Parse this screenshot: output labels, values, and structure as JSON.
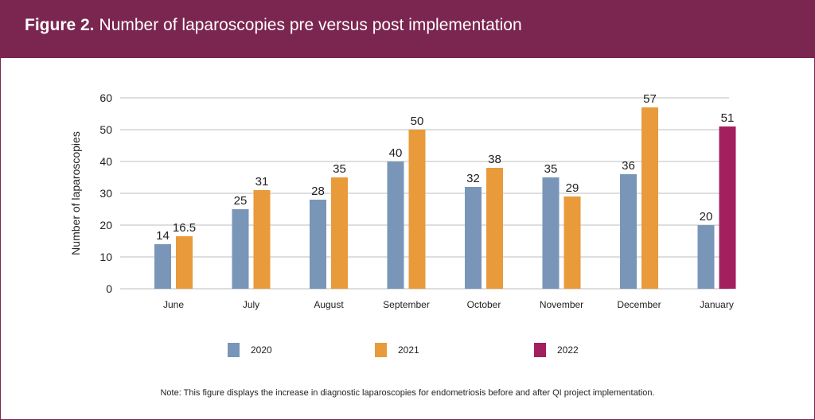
{
  "figure": {
    "label": "Figure 2.",
    "title": "Number of laparoscopies pre versus post implementation",
    "note": "Note: This figure displays the increase in diagnostic laparoscopies for endometriosis before and after QI project implementation."
  },
  "colors": {
    "header": "#7b2650",
    "s2020": "#7996b8",
    "s2021": "#e99a3b",
    "s2022": "#a3205f"
  },
  "chart_data": {
    "type": "bar",
    "ylabel": "Number of laparoscopies",
    "xlabel": "",
    "ylim": [
      0,
      60
    ],
    "yticks": [
      0,
      10,
      20,
      30,
      40,
      50,
      60
    ],
    "grid": true,
    "legend_position": "bottom",
    "categories": [
      "June",
      "July",
      "August",
      "September",
      "October",
      "November",
      "December",
      "January"
    ],
    "series": [
      {
        "name": "2020",
        "color": "#7996b8",
        "values": [
          14,
          25,
          28,
          40,
          32,
          35,
          36,
          20
        ]
      },
      {
        "name": "2021",
        "color": "#e99a3b",
        "values": [
          16.5,
          31,
          35,
          50,
          38,
          29,
          57,
          null
        ]
      },
      {
        "name": "2022",
        "color": "#a3205f",
        "values": [
          null,
          null,
          null,
          null,
          null,
          null,
          null,
          51
        ]
      }
    ]
  }
}
